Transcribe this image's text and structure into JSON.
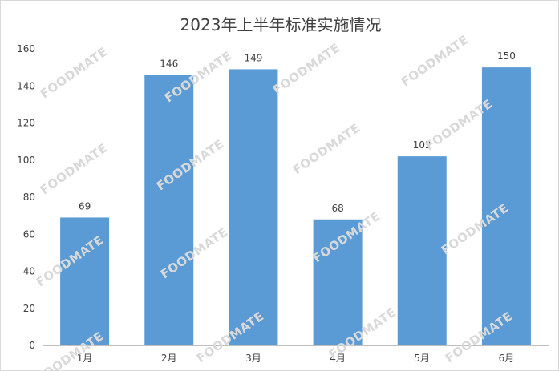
{
  "chart_data": {
    "type": "bar",
    "title": "2023年上半年标准实施情况",
    "categories": [
      "1月",
      "2月",
      "3月",
      "4月",
      "5月",
      "6月"
    ],
    "values": [
      69,
      146,
      149,
      68,
      102,
      150
    ],
    "ylim": [
      0,
      160
    ],
    "yticks": [
      0,
      20,
      40,
      60,
      80,
      100,
      120,
      140,
      160
    ],
    "grid": false,
    "legend": "none",
    "bar_color": "#5b9bd5"
  },
  "watermark": "FOODMATE"
}
